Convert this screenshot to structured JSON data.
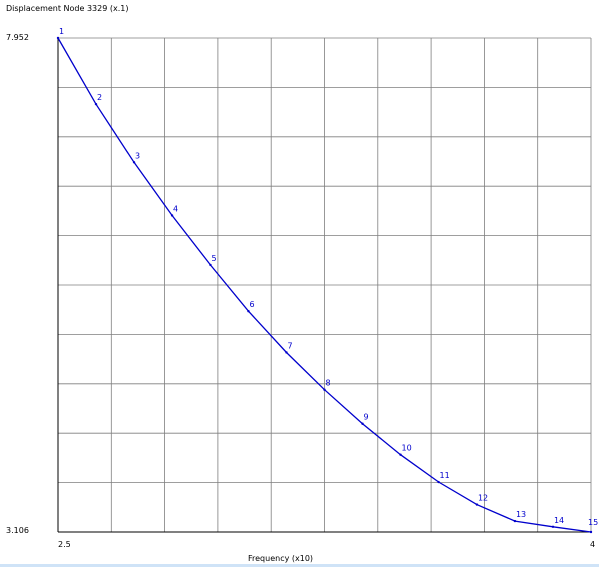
{
  "chart_data": {
    "type": "line",
    "title": "Displacement Node 3329 (x.1)",
    "xlabel": "Frequency (x10)",
    "ylabel": "",
    "xlim": [
      2.5,
      4
    ],
    "ylim": [
      3.106,
      7.952
    ],
    "x_tick_labels": [
      "2.5",
      "4"
    ],
    "y_tick_labels": [
      "7.952",
      "3.106"
    ],
    "grid": true,
    "grid_divisions": {
      "x": 10,
      "y": 10
    },
    "colors": {
      "series": "#0000cc",
      "labels": "#0000cc",
      "grid": "#7f7f7f",
      "axes": "#000000"
    },
    "series": [
      {
        "x": [
          2.5,
          2.607,
          2.714,
          2.821,
          2.929,
          3.036,
          3.143,
          3.25,
          3.357,
          3.464,
          3.571,
          3.679,
          3.786,
          3.893,
          4.0
        ],
        "y": [
          7.952,
          7.303,
          6.733,
          6.211,
          5.726,
          5.272,
          4.867,
          4.502,
          4.168,
          3.864,
          3.596,
          3.375,
          3.213,
          3.157,
          3.106
        ],
        "point_labels": [
          "1",
          "2",
          "3",
          "4",
          "5",
          "6",
          "7",
          "8",
          "9",
          "10",
          "11",
          "12",
          "13",
          "14",
          "15"
        ]
      }
    ]
  }
}
